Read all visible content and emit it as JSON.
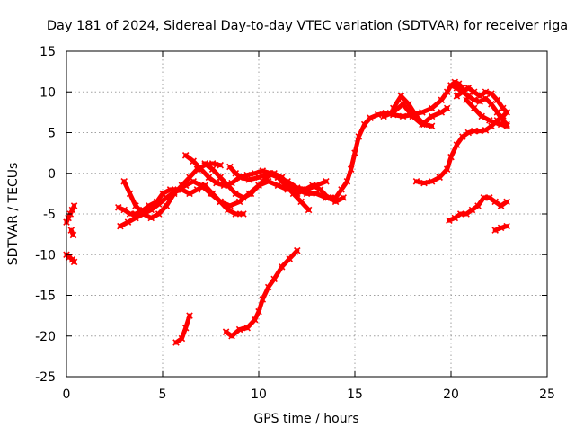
{
  "chart_data": {
    "type": "scatter",
    "title": "Day 181 of 2024, Sidereal Day-to-day VTEC variation (SDTVAR) for receiver riga",
    "xlabel": "GPS time / hours",
    "ylabel": "SDTVAR / TECUs",
    "xlim": [
      0,
      25
    ],
    "ylim": [
      -25,
      15
    ],
    "xticks": [
      "0",
      "5",
      "10",
      "15",
      "20",
      "25"
    ],
    "yticks": [
      "15",
      "10",
      "5",
      "0",
      "-5",
      "-10",
      "-15",
      "-20",
      "-25"
    ],
    "grid": true,
    "series": [
      {
        "name": "SDTVAR",
        "color": "#ff0000",
        "tracks": [
          {
            "x": [
              0.0,
              0.1,
              0.2,
              0.3,
              0.4
            ],
            "y": [
              -6,
              -5.5,
              -5,
              -4.5,
              -4
            ]
          },
          {
            "x": [
              0.25,
              0.35
            ],
            "y": [
              -7,
              -7.6
            ]
          },
          {
            "x": [
              0.0,
              0.15,
              0.3,
              0.4
            ],
            "y": [
              -10,
              -10.3,
              -10.6,
              -10.9
            ]
          },
          {
            "x": [
              2.7,
              3.0,
              3.3,
              3.6,
              4.0,
              4.3,
              4.7,
              5.0,
              5.4,
              5.8,
              6.2,
              6.6,
              7.0,
              7.5,
              8.0,
              8.5,
              9.0,
              9.5,
              10.0,
              10.5,
              11.0,
              11.5,
              12.0,
              12.5,
              13.0,
              13.5,
              14.0,
              14.3,
              14.6,
              14.8,
              15.0,
              15.2,
              15.5,
              15.8,
              16.2,
              16.6,
              17.0,
              17.5,
              18.0,
              18.5,
              19.0,
              19.5,
              19.8,
              20.0,
              20.2,
              20.4,
              20.6
            ],
            "y": [
              -4.2,
              -4.5,
              -5.0,
              -5.0,
              -4.5,
              -4.0,
              -3.5,
              -2.5,
              -2.0,
              -2.0,
              -1.5,
              -1.0,
              -1.5,
              -2.5,
              -3.5,
              -4.0,
              -3.5,
              -2.5,
              -1.5,
              -1.0,
              -1.5,
              -2.0,
              -2.0,
              -2.5,
              -2.5,
              -3.0,
              -3.0,
              -2.0,
              -1.0,
              0.5,
              2.5,
              4.5,
              6.0,
              6.8,
              7.2,
              7.4,
              7.2,
              7.0,
              7.2,
              7.5,
              8.0,
              9.0,
              10.0,
              10.8,
              11.2,
              11.0,
              10.5
            ]
          },
          {
            "x": [
              2.8,
              3.2,
              3.6,
              4.0,
              4.4,
              4.8,
              5.2,
              5.6,
              6.0,
              6.4,
              6.8,
              7.2,
              7.6,
              8.0,
              8.4,
              8.8,
              9.2
            ],
            "y": [
              -6.5,
              -6.0,
              -5.5,
              -5.0,
              -4.5,
              -3.8,
              -3.0,
              -2.3,
              -2.0,
              -2.5,
              -2.0,
              -1.5,
              -2.5,
              -3.5,
              -4.5,
              -5.0,
              -5.0
            ]
          },
          {
            "x": [
              3.0,
              3.3,
              3.6,
              4.0,
              4.4,
              4.8,
              5.2,
              5.6,
              6.0,
              6.4,
              6.8,
              7.2,
              7.6,
              8.0
            ],
            "y": [
              -1.0,
              -2.5,
              -4.0,
              -5.0,
              -5.5,
              -5.0,
              -4.0,
              -2.5,
              -1.5,
              -0.5,
              0.5,
              1.0,
              1.2,
              1.0
            ]
          },
          {
            "x": [
              6.2,
              6.6,
              7.0,
              7.4,
              7.8,
              8.2,
              8.6,
              9.0,
              9.4,
              9.8,
              10.2,
              10.6,
              11.0,
              11.4,
              11.8,
              12.2,
              12.6
            ],
            "y": [
              2.2,
              1.5,
              0.5,
              -0.5,
              -1.2,
              -1.5,
              -1.2,
              -0.5,
              -0.2,
              0.0,
              0.3,
              0.0,
              -0.5,
              -1.5,
              -2.5,
              -3.5,
              -4.5
            ]
          },
          {
            "x": [
              7.2,
              7.6,
              8.0,
              8.4,
              8.8,
              9.2,
              9.6,
              10.0,
              10.4,
              10.8,
              11.2,
              11.6,
              12.0,
              12.4,
              12.8,
              13.2,
              13.6,
              14.0,
              14.4
            ],
            "y": [
              1.2,
              0.5,
              -0.5,
              -1.5,
              -2.5,
              -3.0,
              -2.5,
              -1.5,
              -0.5,
              0.0,
              -0.5,
              -1.5,
              -2.5,
              -2.0,
              -1.5,
              -2.0,
              -3.0,
              -3.5,
              -3.0
            ]
          },
          {
            "x": [
              8.5,
              8.8,
              9.1,
              9.5,
              10.0,
              10.5,
              11.0,
              11.5,
              12.0,
              12.5,
              13.0,
              13.5
            ],
            "y": [
              0.8,
              0.0,
              -0.5,
              -0.8,
              -0.5,
              0.0,
              -0.5,
              -1.0,
              -1.8,
              -2.0,
              -1.5,
              -1.0
            ]
          },
          {
            "x": [
              5.7,
              6.0,
              6.2,
              6.4
            ],
            "y": [
              -20.8,
              -20.3,
              -19.0,
              -17.5
            ]
          },
          {
            "x": [
              8.3,
              8.6,
              9.0,
              9.4,
              9.8,
              10.0,
              10.2,
              10.5,
              10.8,
              11.2,
              11.6,
              12.0
            ],
            "y": [
              -19.5,
              -20.0,
              -19.2,
              -19.0,
              -18.0,
              -17.0,
              -15.5,
              -14.0,
              -13.0,
              -11.5,
              -10.5,
              -9.5
            ]
          },
          {
            "x": [
              16.5,
              17.0,
              17.5,
              18.0,
              18.5,
              19.0,
              19.5,
              19.8
            ],
            "y": [
              7.0,
              7.5,
              8.5,
              7.0,
              6.0,
              7.0,
              7.5,
              8.0
            ]
          },
          {
            "x": [
              17.0,
              17.4,
              17.8,
              18.2,
              18.6,
              19.0
            ],
            "y": [
              8.0,
              9.5,
              8.5,
              7.0,
              6.0,
              5.8
            ]
          },
          {
            "x": [
              18.2,
              18.6,
              19.0,
              19.4,
              19.8,
              20.0,
              20.3,
              20.6,
              20.9,
              21.2,
              21.5,
              21.8,
              22.1,
              22.4,
              22.7,
              22.9
            ],
            "y": [
              -1.0,
              -1.2,
              -1.0,
              -0.5,
              0.5,
              2.0,
              3.5,
              4.5,
              5.0,
              5.2,
              5.2,
              5.3,
              5.8,
              6.5,
              7.0,
              7.5
            ]
          },
          {
            "x": [
              20.0,
              20.3,
              20.6,
              20.9,
              21.2,
              21.5,
              21.8,
              22.1,
              22.4,
              22.7,
              22.9
            ],
            "y": [
              10.8,
              10.5,
              10.0,
              9.5,
              9.0,
              8.8,
              9.2,
              8.5,
              7.5,
              6.5,
              6.0
            ]
          },
          {
            "x": [
              20.3,
              20.6,
              20.9,
              21.2,
              21.5,
              21.8,
              22.1,
              22.4,
              22.7,
              22.9
            ],
            "y": [
              9.5,
              10.0,
              10.5,
              10.0,
              9.5,
              10.0,
              9.8,
              9.0,
              8.0,
              7.5
            ]
          },
          {
            "x": [
              20.8,
              21.2,
              21.6,
              22.0,
              22.3,
              22.6,
              22.9
            ],
            "y": [
              9.0,
              8.0,
              7.0,
              6.5,
              6.2,
              6.0,
              5.8
            ]
          },
          {
            "x": [
              19.9,
              20.2,
              20.5,
              20.8,
              21.1,
              21.4,
              21.7,
              22.0,
              22.3,
              22.6,
              22.9
            ],
            "y": [
              -5.8,
              -5.5,
              -5.0,
              -5.0,
              -4.5,
              -4.0,
              -3.0,
              -3.0,
              -3.5,
              -4.0,
              -3.5
            ]
          },
          {
            "x": [
              22.3,
              22.6,
              22.9
            ],
            "y": [
              -7.0,
              -6.7,
              -6.5
            ]
          }
        ]
      }
    ]
  }
}
